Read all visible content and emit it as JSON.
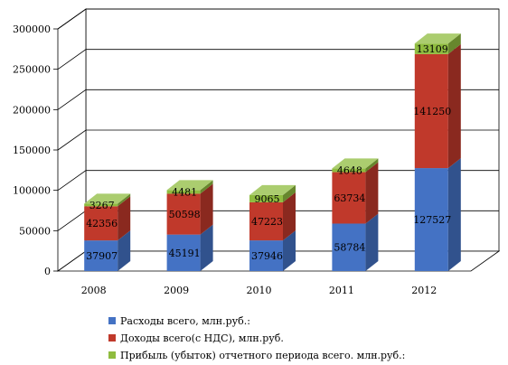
{
  "chart_data": {
    "type": "bar",
    "stacked": true,
    "three_d": true,
    "categories": [
      "2008",
      "2009",
      "2010",
      "2011",
      "2012"
    ],
    "series": [
      {
        "name": "Расходы всего, млн.руб.:",
        "color": "#4472c4",
        "values": [
          37907,
          45191,
          37946,
          58784,
          127527
        ]
      },
      {
        "name": "Доходы всего(с НДС), млн.руб.",
        "color": "#c0392b",
        "values": [
          42356,
          50598,
          47223,
          63734,
          141250
        ]
      },
      {
        "name": "Прибыль (убыток) отчетного периода всего. млн.руб.:",
        "color": "#8fbc3f",
        "values": [
          3267,
          4481,
          9065,
          4648,
          13109
        ]
      }
    ],
    "ylim": [
      0,
      300000
    ],
    "yticks": [
      0,
      50000,
      100000,
      150000,
      200000,
      250000,
      300000
    ],
    "grid": true,
    "legend_position": "bottom"
  }
}
